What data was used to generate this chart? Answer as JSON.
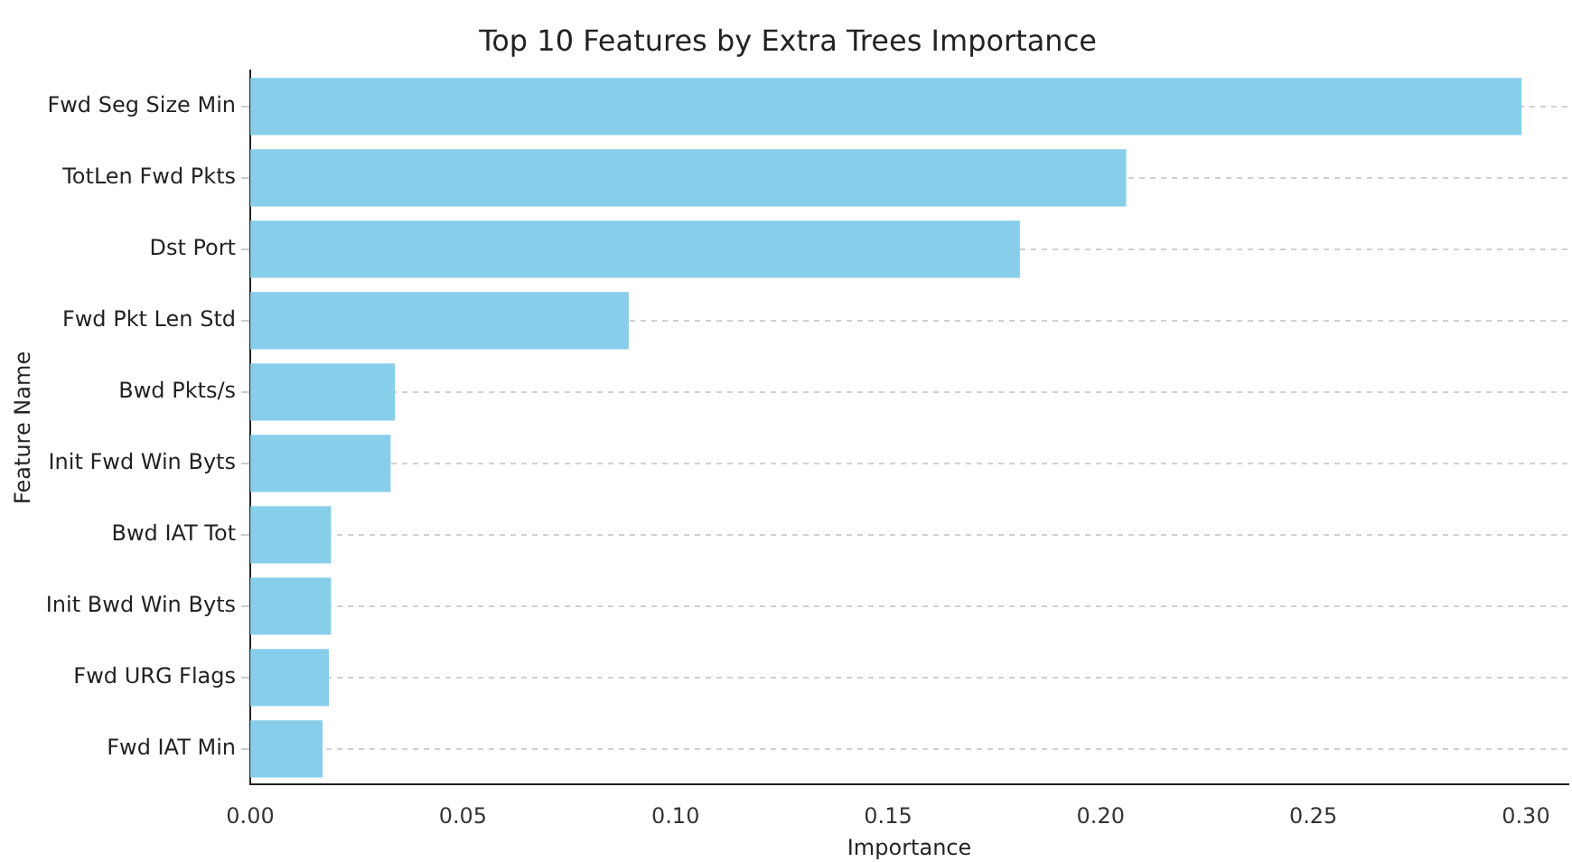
{
  "chart_data": {
    "type": "bar",
    "orientation": "horizontal",
    "title": "Top 10 Features by Extra Trees Importance",
    "xlabel": "Importance",
    "ylabel": "Feature Name",
    "categories": [
      "Fwd Seg Size Min",
      "TotLen Fwd Pkts",
      "Dst Port",
      "Fwd Pkt Len Std",
      "Bwd Pkts/s",
      "Init Fwd Win Byts",
      "Bwd IAT Tot",
      "Init Bwd Win Byts",
      "Fwd URG Flags",
      "Fwd IAT Min"
    ],
    "values": [
      0.299,
      0.206,
      0.181,
      0.089,
      0.034,
      0.033,
      0.019,
      0.019,
      0.0185,
      0.017
    ],
    "color": "#87ceeb",
    "xlim": [
      0,
      0.31
    ],
    "xticks": [
      {
        "value": 0,
        "label": "0.00"
      },
      {
        "value": 0.05,
        "label": "0.05"
      },
      {
        "value": 0.1,
        "label": "0.10"
      },
      {
        "value": 0.15,
        "label": "0.15"
      },
      {
        "value": 0.2,
        "label": "0.20"
      },
      {
        "value": 0.25,
        "label": "0.25"
      },
      {
        "value": 0.3,
        "label": "0.30"
      }
    ],
    "grid": "y",
    "legend": false
  }
}
